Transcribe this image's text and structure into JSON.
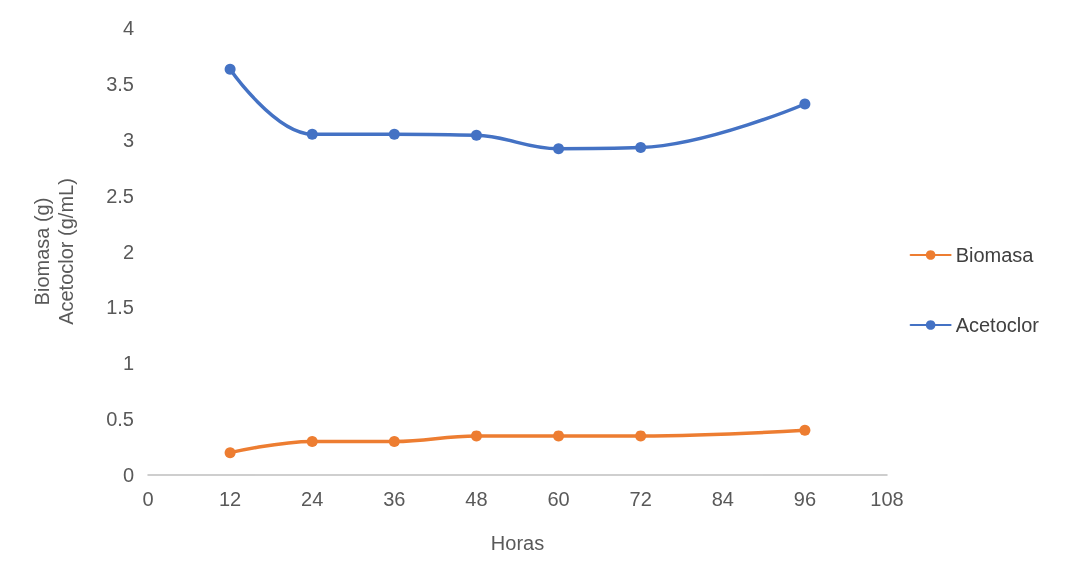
{
  "chart_data": {
    "type": "line",
    "xlabel": "Horas",
    "ylabel": "Biomasa (g)\nAcetoclor (g/mL)",
    "x": [
      12,
      24,
      36,
      48,
      60,
      72,
      96
    ],
    "series": [
      {
        "name": "Biomasa",
        "color": "#ed7d31",
        "values": [
          0.2,
          0.3,
          0.3,
          0.35,
          0.35,
          0.35,
          0.4
        ]
      },
      {
        "name": "Acetoclor",
        "color": "#4472c4",
        "values": [
          3.63,
          3.05,
          3.05,
          3.04,
          2.92,
          2.93,
          3.32
        ]
      }
    ],
    "xlim": [
      0,
      108
    ],
    "xticks": [
      0,
      12,
      24,
      36,
      48,
      60,
      72,
      84,
      96,
      108
    ],
    "ylim": [
      0,
      4
    ],
    "yticks": [
      0,
      0.5,
      1,
      1.5,
      2,
      2.5,
      3,
      3.5,
      4
    ],
    "grid": false,
    "legend": "right",
    "marker": "circle",
    "line_style": "solid"
  }
}
